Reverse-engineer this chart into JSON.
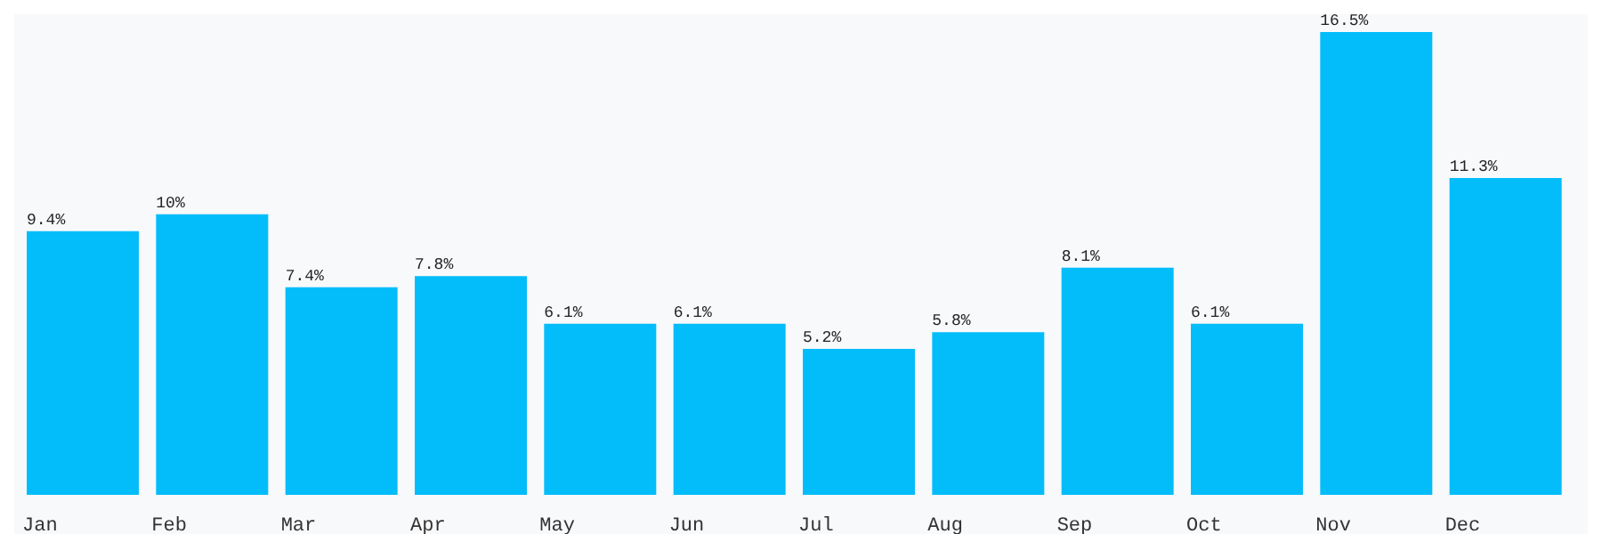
{
  "chart_data": {
    "type": "bar",
    "categories": [
      "Jan",
      "Feb",
      "Mar",
      "Apr",
      "May",
      "Jun",
      "Jul",
      "Aug",
      "Sep",
      "Oct",
      "Nov",
      "Dec"
    ],
    "values": [
      9.4,
      10,
      7.4,
      7.8,
      6.1,
      6.1,
      5.2,
      5.8,
      8.1,
      6.1,
      16.5,
      11.3
    ],
    "value_labels": [
      "9.4%",
      "10%",
      "7.4%",
      "7.8%",
      "6.1%",
      "6.1%",
      "5.2%",
      "5.8%",
      "8.1%",
      "6.1%",
      "16.5%",
      "11.3%"
    ],
    "color": "#03bdfb",
    "grid": false,
    "legend": false
  }
}
